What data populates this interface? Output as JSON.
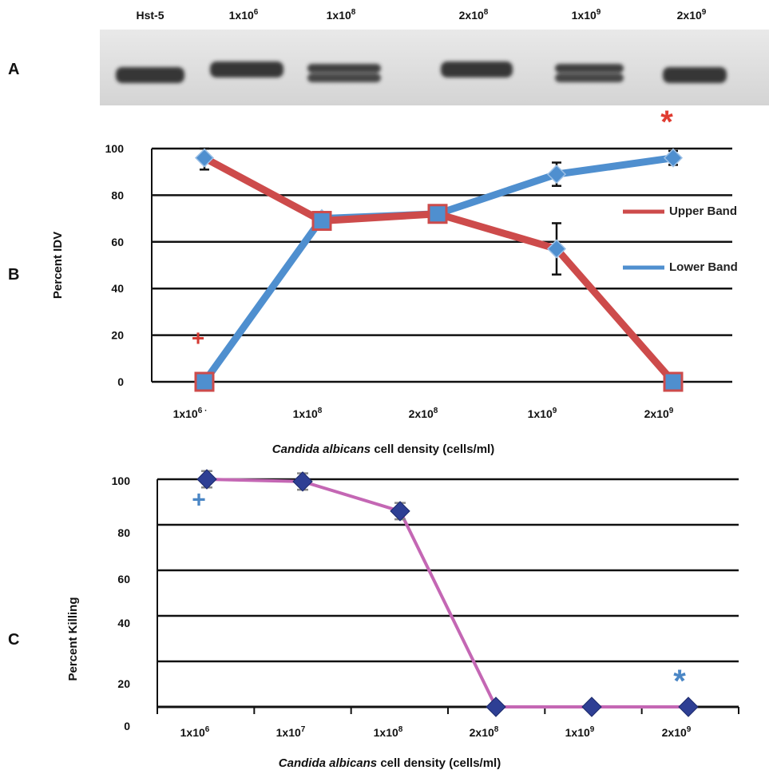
{
  "panels": {
    "a": "A",
    "b": "B",
    "c": "C"
  },
  "blot": {
    "lanes": [
      {
        "base": "Hst-5",
        "exp": ""
      },
      {
        "base": "1x10",
        "exp": "6"
      },
      {
        "base": "1x10",
        "exp": "8"
      },
      {
        "base": "2x10",
        "exp": "8"
      },
      {
        "base": "1x10",
        "exp": "9"
      },
      {
        "base": "2x10",
        "exp": "9"
      }
    ]
  },
  "chart_data": [
    {
      "type": "line",
      "ylabel": "Percent IDV",
      "xlabel_italic": "Candida albicans",
      "xlabel_rest": " cell density (cells/ml)",
      "categories": [
        {
          "base": "1x10",
          "exp": "6",
          "suffix": " ·"
        },
        {
          "base": "1x10",
          "exp": "8",
          "suffix": ""
        },
        {
          "base": "2x10",
          "exp": "8",
          "suffix": ""
        },
        {
          "base": "1x10",
          "exp": "9",
          "suffix": ""
        },
        {
          "base": "2x10",
          "exp": "9",
          "suffix": ""
        }
      ],
      "ylim": [
        0,
        100
      ],
      "yticks": [
        "0",
        "20",
        "40",
        "60",
        "80",
        "100"
      ],
      "grid": true,
      "legend_position": "right",
      "series": [
        {
          "name": "Upper Band",
          "color": "#cd4b4b",
          "values": [
            96,
            69,
            72,
            57,
            0
          ],
          "err_low": [
            5,
            0,
            0,
            11,
            0
          ],
          "err_high": [
            4,
            0,
            0,
            11,
            0
          ]
        },
        {
          "name": "Lower Band",
          "color": "#4f8fcf",
          "values": [
            0,
            70,
            72,
            89,
            96
          ],
          "err_low": [
            0,
            0,
            2,
            5,
            3
          ],
          "err_high": [
            0,
            0,
            0,
            5,
            3
          ]
        }
      ],
      "annotations": [
        {
          "text": "*",
          "color": "#e03c31",
          "x_index": 4,
          "y": 113
        },
        {
          "text": "+",
          "color": "#d43b34",
          "x_index": 0,
          "y": 19
        }
      ]
    },
    {
      "type": "line",
      "ylabel": "Percent Killing",
      "xlabel_italic": "Candida albicans",
      "xlabel_rest": " cell density (cells/ml)",
      "categories": [
        {
          "base": "1x10",
          "exp": "6",
          "suffix": ""
        },
        {
          "base": "1x10",
          "exp": "7",
          "suffix": ""
        },
        {
          "base": "1x10",
          "exp": "8",
          "suffix": ""
        },
        {
          "base": "2x10",
          "exp": "8",
          "suffix": ""
        },
        {
          "base": "1x10",
          "exp": "9",
          "suffix": ""
        },
        {
          "base": "2x10",
          "exp": "9",
          "suffix": ""
        }
      ],
      "ylim": [
        0,
        100
      ],
      "yticks": [
        "0",
        "20",
        "40",
        "60",
        "80",
        "100"
      ],
      "grid": true,
      "series": [
        {
          "name": "",
          "line_color": "#c467b4",
          "marker_color": "#2e3f94",
          "values": [
            100,
            99,
            86,
            0,
            0,
            0
          ],
          "err": [
            1.5,
            1.5,
            1.5,
            0,
            0,
            0
          ]
        }
      ],
      "annotations": [
        {
          "text": "+",
          "color": "#4a86c5",
          "x_index": 0,
          "y": 91
        },
        {
          "text": "*",
          "color": "#4a86c5",
          "x_index": 5,
          "y": 13
        }
      ]
    }
  ]
}
